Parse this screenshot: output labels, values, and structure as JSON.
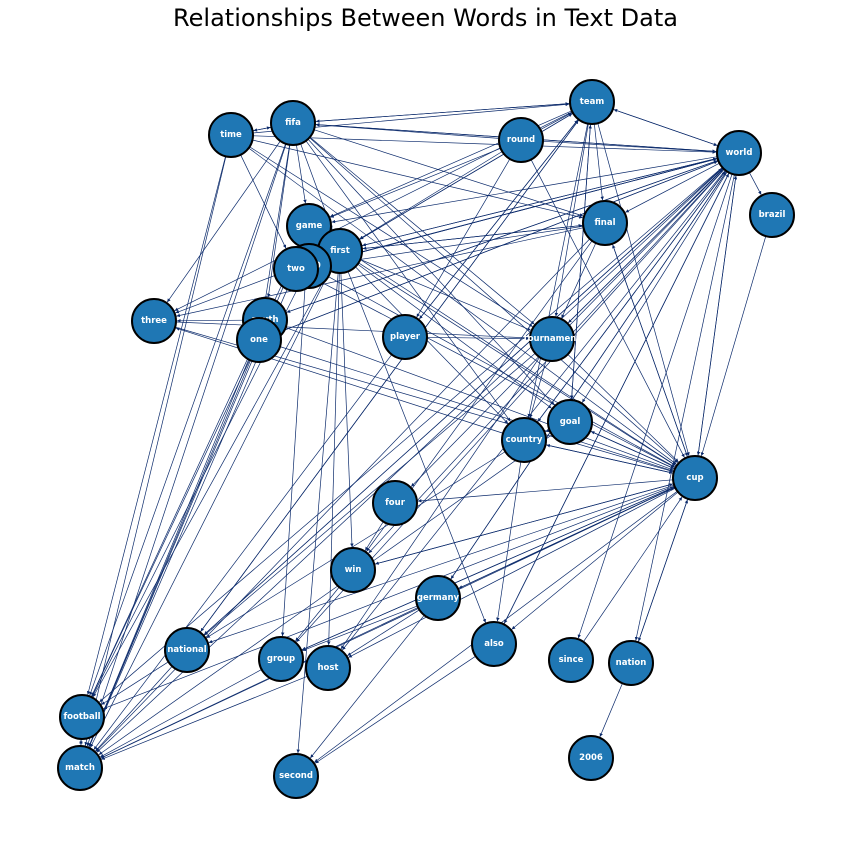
{
  "title": "Relationships Between Words in Text Data",
  "colors": {
    "node_fill": "#1f77b4",
    "node_stroke": "#000000",
    "edge": "#0b2a6b",
    "label": "#ffffff"
  },
  "nodes": [
    {
      "id": "time",
      "label": "time"
    },
    {
      "id": "fifa",
      "label": "fifa"
    },
    {
      "id": "team",
      "label": "team"
    },
    {
      "id": "round",
      "label": "round"
    },
    {
      "id": "world",
      "label": "world"
    },
    {
      "id": "brazil",
      "label": "brazil"
    },
    {
      "id": "final",
      "label": "final"
    },
    {
      "id": "game",
      "label": "game"
    },
    {
      "id": "first",
      "label": "first"
    },
    {
      "id": "2010",
      "label": "2010"
    },
    {
      "id": "two",
      "label": "two"
    },
    {
      "id": "three",
      "label": "three"
    },
    {
      "id": "south",
      "label": "south"
    },
    {
      "id": "one",
      "label": "one"
    },
    {
      "id": "player",
      "label": "player"
    },
    {
      "id": "tournament",
      "label": "tournament"
    },
    {
      "id": "goal",
      "label": "goal"
    },
    {
      "id": "country",
      "label": "country"
    },
    {
      "id": "cup",
      "label": "cup"
    },
    {
      "id": "four",
      "label": "four"
    },
    {
      "id": "win",
      "label": "win"
    },
    {
      "id": "germany",
      "label": "germany"
    },
    {
      "id": "national",
      "label": "national"
    },
    {
      "id": "group",
      "label": "group"
    },
    {
      "id": "host",
      "label": "host"
    },
    {
      "id": "also",
      "label": "also"
    },
    {
      "id": "since",
      "label": "since"
    },
    {
      "id": "nation",
      "label": "nation"
    },
    {
      "id": "football",
      "label": "football"
    },
    {
      "id": "match",
      "label": "match"
    },
    {
      "id": "second",
      "label": "second"
    },
    {
      "id": "2006",
      "label": "2006"
    }
  ],
  "edges": [
    [
      "fifa",
      "time"
    ],
    [
      "time",
      "fifa"
    ],
    [
      "fifa",
      "team"
    ],
    [
      "team",
      "fifa"
    ],
    [
      "round",
      "fifa"
    ],
    [
      "fifa",
      "world"
    ],
    [
      "world",
      "fifa"
    ],
    [
      "time",
      "team"
    ],
    [
      "time",
      "world"
    ],
    [
      "time",
      "final"
    ],
    [
      "time",
      "tournament"
    ],
    [
      "time",
      "cup"
    ],
    [
      "time",
      "two"
    ],
    [
      "time",
      "football"
    ],
    [
      "fifa",
      "final"
    ],
    [
      "fifa",
      "tournament"
    ],
    [
      "fifa",
      "cup"
    ],
    [
      "fifa",
      "game"
    ],
    [
      "fifa",
      "first"
    ],
    [
      "fifa",
      "south"
    ],
    [
      "fifa",
      "one"
    ],
    [
      "fifa",
      "three"
    ],
    [
      "fifa",
      "football"
    ],
    [
      "fifa",
      "match"
    ],
    [
      "fifa",
      "goal"
    ],
    [
      "fifa",
      "country"
    ],
    [
      "round",
      "team"
    ],
    [
      "round",
      "world"
    ],
    [
      "round",
      "first"
    ],
    [
      "round",
      "game"
    ],
    [
      "round",
      "cup"
    ],
    [
      "round",
      "player"
    ],
    [
      "team",
      "world"
    ],
    [
      "world",
      "team"
    ],
    [
      "team",
      "final"
    ],
    [
      "team",
      "tournament"
    ],
    [
      "team",
      "goal"
    ],
    [
      "team",
      "cup"
    ],
    [
      "team",
      "first"
    ],
    [
      "team",
      "game"
    ],
    [
      "team",
      "three"
    ],
    [
      "team",
      "country"
    ],
    [
      "team",
      "national"
    ],
    [
      "team",
      "player"
    ],
    [
      "world",
      "cup"
    ],
    [
      "cup",
      "world"
    ],
    [
      "world",
      "brazil"
    ],
    [
      "brazil",
      "cup"
    ],
    [
      "world",
      "final"
    ],
    [
      "world",
      "first"
    ],
    [
      "world",
      "game"
    ],
    [
      "world",
      "tournament"
    ],
    [
      "world",
      "goal"
    ],
    [
      "world",
      "country"
    ],
    [
      "world",
      "four"
    ],
    [
      "world",
      "win"
    ],
    [
      "world",
      "germany"
    ],
    [
      "world",
      "national"
    ],
    [
      "world",
      "group"
    ],
    [
      "world",
      "host"
    ],
    [
      "world",
      "also"
    ],
    [
      "world",
      "since"
    ],
    [
      "world",
      "football"
    ],
    [
      "world",
      "match"
    ],
    [
      "world",
      "south"
    ],
    [
      "world",
      "one"
    ],
    [
      "world",
      "two"
    ],
    [
      "world",
      "2010"
    ],
    [
      "world",
      "nation"
    ],
    [
      "final",
      "first"
    ],
    [
      "final",
      "cup"
    ],
    [
      "final",
      "match"
    ],
    [
      "final",
      "tournament"
    ],
    [
      "final",
      "win"
    ],
    [
      "final",
      "two"
    ],
    [
      "final",
      "three"
    ],
    [
      "first",
      "cup"
    ],
    [
      "first",
      "world"
    ],
    [
      "first",
      "team"
    ],
    [
      "first",
      "final"
    ],
    [
      "first",
      "win"
    ],
    [
      "first",
      "also"
    ],
    [
      "first",
      "host"
    ],
    [
      "first",
      "second"
    ],
    [
      "first",
      "match"
    ],
    [
      "first",
      "football"
    ],
    [
      "first",
      "tournament"
    ],
    [
      "first",
      "goal"
    ],
    [
      "first",
      "three"
    ],
    [
      "first",
      "country"
    ],
    [
      "game",
      "match"
    ],
    [
      "game",
      "cup"
    ],
    [
      "game",
      "football"
    ],
    [
      "game",
      "group"
    ],
    [
      "2010",
      "world"
    ],
    [
      "2010",
      "cup"
    ],
    [
      "2010",
      "football"
    ],
    [
      "two",
      "cup"
    ],
    [
      "two",
      "match"
    ],
    [
      "south",
      "cup"
    ],
    [
      "south",
      "world"
    ],
    [
      "south",
      "match"
    ],
    [
      "one",
      "cup"
    ],
    [
      "one",
      "world"
    ],
    [
      "one",
      "match"
    ],
    [
      "one",
      "football"
    ],
    [
      "player",
      "tournament"
    ],
    [
      "player",
      "match"
    ],
    [
      "player",
      "team"
    ],
    [
      "tournament",
      "cup"
    ],
    [
      "tournament",
      "country"
    ],
    [
      "tournament",
      "host"
    ],
    [
      "tournament",
      "national"
    ],
    [
      "tournament",
      "world"
    ],
    [
      "goal",
      "cup"
    ],
    [
      "goal",
      "team"
    ],
    [
      "goal",
      "match"
    ],
    [
      "goal",
      "country"
    ],
    [
      "country",
      "cup"
    ],
    [
      "cup",
      "country"
    ],
    [
      "country",
      "three"
    ],
    [
      "country",
      "also"
    ],
    [
      "country",
      "national"
    ],
    [
      "country",
      "world"
    ],
    [
      "cup",
      "four"
    ],
    [
      "cup",
      "win"
    ],
    [
      "cup",
      "germany"
    ],
    [
      "cup",
      "group"
    ],
    [
      "cup",
      "host"
    ],
    [
      "cup",
      "also"
    ],
    [
      "cup",
      "nation"
    ],
    [
      "nation",
      "cup"
    ],
    [
      "cup",
      "national"
    ],
    [
      "cup",
      "football"
    ],
    [
      "cup",
      "match"
    ],
    [
      "cup",
      "second"
    ],
    [
      "cup",
      "final"
    ],
    [
      "cup",
      "goal"
    ],
    [
      "nation",
      "2006"
    ],
    [
      "germany",
      "group"
    ],
    [
      "germany",
      "host"
    ],
    [
      "germany",
      "cup"
    ],
    [
      "germany",
      "second"
    ],
    [
      "germany",
      "world"
    ],
    [
      "win",
      "group"
    ],
    [
      "win",
      "cup"
    ],
    [
      "four",
      "win"
    ],
    [
      "national",
      "match"
    ],
    [
      "national",
      "football"
    ],
    [
      "national",
      "team"
    ],
    [
      "national",
      "world"
    ],
    [
      "group",
      "match"
    ],
    [
      "group",
      "cup"
    ],
    [
      "also",
      "second"
    ],
    [
      "also",
      "world"
    ],
    [
      "since",
      "cup"
    ],
    [
      "football",
      "match"
    ],
    [
      "match",
      "football"
    ],
    [
      "time",
      "match"
    ],
    [
      "three",
      "cup"
    ],
    [
      "three",
      "tournament"
    ],
    [
      "south",
      "three"
    ],
    [
      "host",
      "match"
    ],
    [
      "germany",
      "match"
    ]
  ]
}
